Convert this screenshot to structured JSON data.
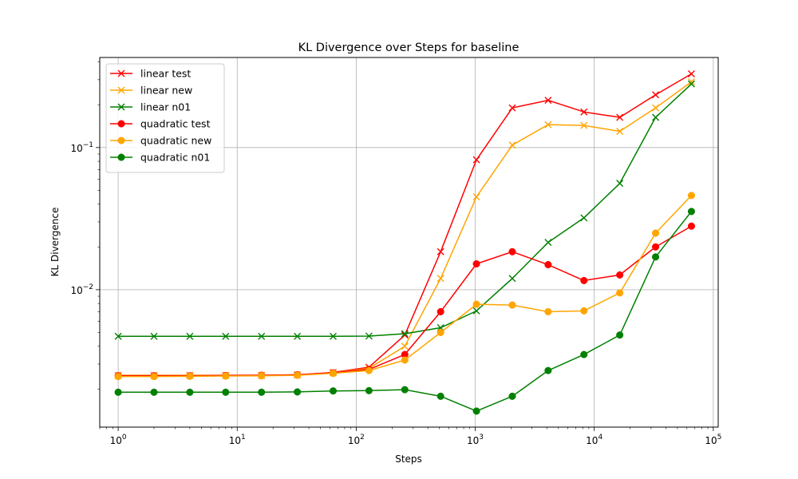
{
  "chart_data": {
    "type": "line",
    "title": "KL Divergence over Steps for baseline",
    "xlabel": "Steps",
    "ylabel": "KL Divergence",
    "xscale": "log",
    "yscale": "log",
    "xlim": [
      0.7,
      110000
    ],
    "ylim": [
      0.00108,
      0.43
    ],
    "grid": true,
    "legend_position": "top-left",
    "x_ticks": [
      {
        "value": 1,
        "base": "10",
        "exp": "0"
      },
      {
        "value": 10,
        "base": "10",
        "exp": "1"
      },
      {
        "value": 100,
        "base": "10",
        "exp": "2"
      },
      {
        "value": 1000,
        "base": "10",
        "exp": "3"
      },
      {
        "value": 10000,
        "base": "10",
        "exp": "4"
      },
      {
        "value": 100000,
        "base": "10",
        "exp": "5"
      }
    ],
    "y_ticks": [
      {
        "value": 0.01,
        "base": "10",
        "exp": "−2"
      },
      {
        "value": 0.1,
        "base": "10",
        "exp": "−1"
      }
    ],
    "x": [
      1,
      2,
      4,
      8,
      16,
      32,
      64,
      128,
      256,
      512,
      1024,
      2048,
      4096,
      8192,
      16384,
      32768,
      65536
    ],
    "series": [
      {
        "name": "linear test",
        "color": "#ff0000",
        "marker": "x",
        "values": [
          0.0025,
          0.0025,
          0.0025,
          0.0025,
          0.0025,
          0.00252,
          0.00262,
          0.00285,
          0.0048,
          0.0185,
          0.082,
          0.19,
          0.215,
          0.178,
          0.163,
          0.235,
          0.33
        ]
      },
      {
        "name": "linear new",
        "color": "#ffa500",
        "marker": "x",
        "values": [
          0.0025,
          0.0025,
          0.0025,
          0.0025,
          0.0025,
          0.00252,
          0.0026,
          0.0028,
          0.004,
          0.012,
          0.045,
          0.104,
          0.145,
          0.143,
          0.13,
          0.19,
          0.29
        ]
      },
      {
        "name": "linear n01",
        "color": "#008000",
        "marker": "x",
        "values": [
          0.0047,
          0.0047,
          0.0047,
          0.0047,
          0.0047,
          0.0047,
          0.0047,
          0.00472,
          0.0049,
          0.0054,
          0.0071,
          0.012,
          0.0215,
          0.032,
          0.056,
          0.163,
          0.28
        ]
      },
      {
        "name": "quadratic test",
        "color": "#ff0000",
        "marker": "o",
        "values": [
          0.00248,
          0.00248,
          0.00248,
          0.00249,
          0.0025,
          0.00252,
          0.0026,
          0.00275,
          0.0035,
          0.007,
          0.0152,
          0.0185,
          0.015,
          0.0116,
          0.0127,
          0.02,
          0.028
        ]
      },
      {
        "name": "quadratic new",
        "color": "#ffa500",
        "marker": "o",
        "values": [
          0.00245,
          0.00245,
          0.00246,
          0.00247,
          0.00248,
          0.0025,
          0.00258,
          0.0027,
          0.0032,
          0.005,
          0.0079,
          0.0078,
          0.007,
          0.0071,
          0.0095,
          0.025,
          0.046
        ]
      },
      {
        "name": "quadratic n01",
        "color": "#008000",
        "marker": "o",
        "values": [
          0.0019,
          0.0019,
          0.0019,
          0.0019,
          0.0019,
          0.00191,
          0.00194,
          0.00195,
          0.00198,
          0.00178,
          0.0014,
          0.00178,
          0.0027,
          0.0035,
          0.0048,
          0.017,
          0.0355
        ]
      }
    ]
  }
}
